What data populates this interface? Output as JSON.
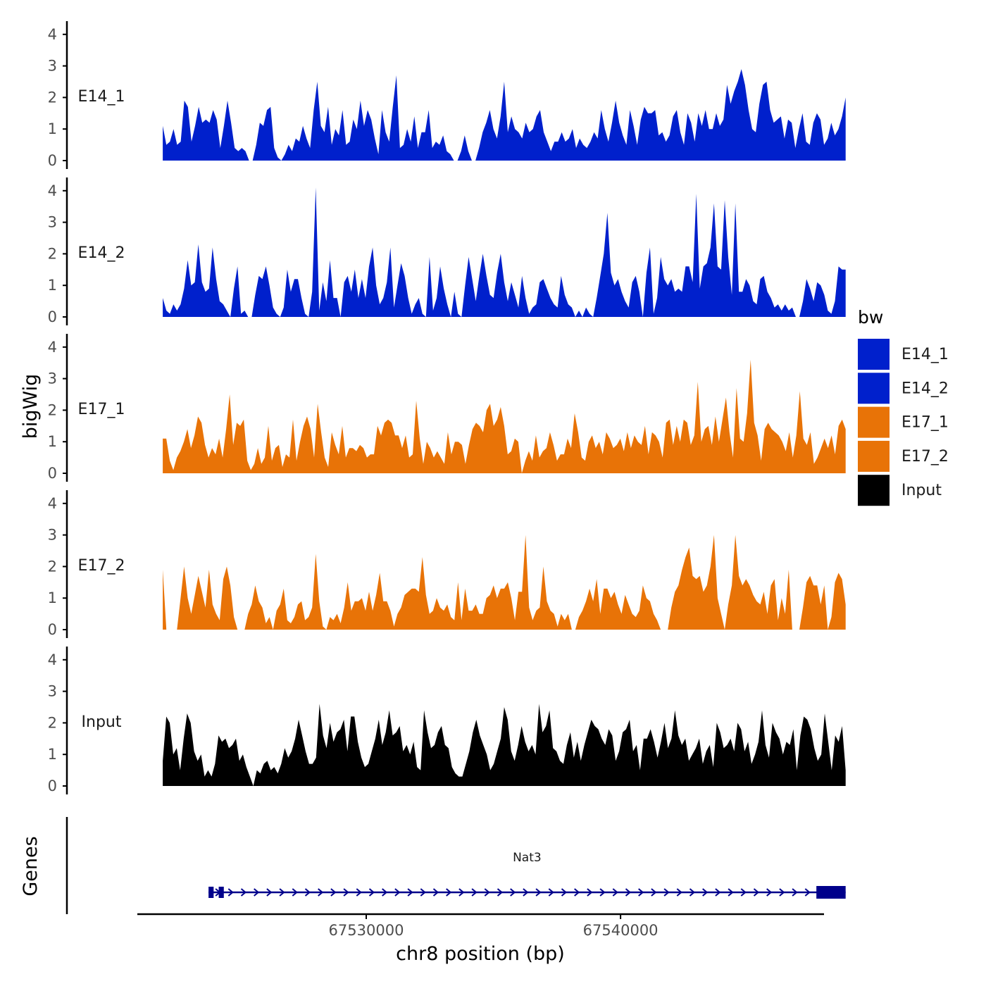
{
  "colors": {
    "E14": "#0020CC",
    "E17": "#E87307",
    "Input": "#000000",
    "gene": "#00008B",
    "axis": "#000000"
  },
  "chart_data": {
    "type": "area",
    "y_axis_title": "bigWig",
    "x_axis_title": "chr8 position (bp)",
    "genes_axis_title": "Genes",
    "x_range": [
      67521000,
      67548000
    ],
    "y_range": [
      0,
      4
    ],
    "y_ticks": [
      "0",
      "1",
      "2",
      "3",
      "4"
    ],
    "x_ticks": [
      {
        "value": 67530000,
        "label": "67530000"
      },
      {
        "value": 67540000,
        "label": "67540000"
      }
    ],
    "data_x_range": [
      67522000,
      67548850
    ],
    "tracks": [
      {
        "name": "E14_1",
        "color_key": "E14",
        "values": [
          1.1,
          0.5,
          0.6,
          1.0,
          0.5,
          0.6,
          1.9,
          1.7,
          0.6,
          1.1,
          1.7,
          1.2,
          1.3,
          1.2,
          1.6,
          1.3,
          0.4,
          1.1,
          1.9,
          1.2,
          0.4,
          0.3,
          0.4,
          0.3,
          0.0,
          0.0,
          0.5,
          1.2,
          1.1,
          1.6,
          1.7,
          0.4,
          0.1,
          0.0,
          0.2,
          0.5,
          0.3,
          0.7,
          0.6,
          1.1,
          0.7,
          0.4,
          1.6,
          2.5,
          1.1,
          0.9,
          1.7,
          0.5,
          1.0,
          0.8,
          1.6,
          0.5,
          0.6,
          1.3,
          1.0,
          1.9,
          1.1,
          1.6,
          1.3,
          0.7,
          0.2,
          1.6,
          0.9,
          0.6,
          1.7,
          2.7,
          0.4,
          0.5,
          1.0,
          0.6,
          1.4,
          0.4,
          0.9,
          0.9,
          1.6,
          0.4,
          0.6,
          0.5,
          0.8,
          0.3,
          0.2,
          0.0,
          0.0,
          0.3,
          0.8,
          0.3,
          0.0,
          0.0,
          0.4,
          0.9,
          1.2,
          1.6,
          1.0,
          0.7,
          1.4,
          2.5,
          0.9,
          1.4,
          1.0,
          0.9,
          0.7,
          1.2,
          0.9,
          1.0,
          1.4,
          1.6,
          0.9,
          0.6,
          0.3,
          0.6,
          0.6,
          0.9,
          0.6,
          0.7,
          1.0,
          0.4,
          0.7,
          0.5,
          0.4,
          0.6,
          0.9,
          0.7,
          1.6,
          1.0,
          0.6,
          1.2,
          1.9,
          1.2,
          0.8,
          0.5,
          1.6,
          1.1,
          0.5,
          1.3,
          1.7,
          1.5,
          1.5,
          1.6,
          0.8,
          0.9,
          0.6,
          0.8,
          1.4,
          1.6,
          0.9,
          0.5,
          1.5,
          1.2,
          0.6,
          1.5,
          1.1,
          1.6,
          1.0,
          1.0,
          1.5,
          1.1,
          1.3,
          2.4,
          1.8,
          2.2,
          2.5,
          2.9,
          2.4,
          1.6,
          1.0,
          0.9,
          1.8,
          2.4,
          2.5,
          1.6,
          1.2,
          1.3,
          1.4,
          0.7,
          1.3,
          1.2,
          0.4,
          1.0,
          1.5,
          0.6,
          0.5,
          1.2,
          1.5,
          1.3,
          0.5,
          0.7,
          1.2,
          0.8,
          1.0,
          1.4,
          2.0
        ],
        "label": "E14_1"
      },
      {
        "name": "E14_2",
        "color_key": "E14",
        "values": [
          0.6,
          0.2,
          0.1,
          0.4,
          0.2,
          0.4,
          0.9,
          1.8,
          1.0,
          1.1,
          2.3,
          1.1,
          0.8,
          0.9,
          2.2,
          1.2,
          0.5,
          0.4,
          0.2,
          0.0,
          0.9,
          1.6,
          0.1,
          0.2,
          0.0,
          0.0,
          0.7,
          1.3,
          1.2,
          1.6,
          1.0,
          0.3,
          0.1,
          0.0,
          0.3,
          1.5,
          0.8,
          1.2,
          1.2,
          0.6,
          0.1,
          0.0,
          0.8,
          4.1,
          0.2,
          1.1,
          0.5,
          1.8,
          0.6,
          0.6,
          0.0,
          1.1,
          1.3,
          0.8,
          1.5,
          0.6,
          1.2,
          0.6,
          1.6,
          2.2,
          1.0,
          0.4,
          0.6,
          1.1,
          2.2,
          0.3,
          1.0,
          1.7,
          1.3,
          0.6,
          0.1,
          0.4,
          0.6,
          0.1,
          0.0,
          1.9,
          0.2,
          0.6,
          1.6,
          0.9,
          0.4,
          0.0,
          0.8,
          0.1,
          0.0,
          1.0,
          1.9,
          1.2,
          0.5,
          1.3,
          2.0,
          1.3,
          0.7,
          0.6,
          1.4,
          2.0,
          1.1,
          0.5,
          1.1,
          0.7,
          0.3,
          1.3,
          0.6,
          0.1,
          0.3,
          0.4,
          1.1,
          1.2,
          0.9,
          0.6,
          0.4,
          0.3,
          1.3,
          0.7,
          0.4,
          0.3,
          0.0,
          0.2,
          0.0,
          0.3,
          0.1,
          0.0,
          0.6,
          1.3,
          2.0,
          3.3,
          1.4,
          1.0,
          1.2,
          0.8,
          0.5,
          0.3,
          1.1,
          1.3,
          0.8,
          0.0,
          1.4,
          2.2,
          0.1,
          0.6,
          1.9,
          1.2,
          1.0,
          1.2,
          0.8,
          0.9,
          0.8,
          1.6,
          1.6,
          1.1,
          3.9,
          0.9,
          1.6,
          1.7,
          2.2,
          3.6,
          1.6,
          1.5,
          3.7,
          1.9,
          0.7,
          3.6,
          0.8,
          0.8,
          1.2,
          1.0,
          0.5,
          0.4,
          1.2,
          1.3,
          0.8,
          0.6,
          0.3,
          0.4,
          0.2,
          0.4,
          0.2,
          0.3,
          0.0,
          0.0,
          0.5,
          1.2,
          0.9,
          0.5,
          1.1,
          1.0,
          0.7,
          0.2,
          0.1,
          0.5,
          1.6,
          1.5,
          1.5
        ],
        "label": "E14_2"
      },
      {
        "name": "E17_1",
        "color_key": "E17",
        "values": [
          1.1,
          1.1,
          0.4,
          0.1,
          0.5,
          0.7,
          1.0,
          1.4,
          0.8,
          1.2,
          1.8,
          1.6,
          0.9,
          0.5,
          0.8,
          0.6,
          1.1,
          0.5,
          1.4,
          2.5,
          0.9,
          1.6,
          1.5,
          1.7,
          0.4,
          0.1,
          0.3,
          0.8,
          0.3,
          0.5,
          1.5,
          0.4,
          0.8,
          0.9,
          0.2,
          0.6,
          0.5,
          1.7,
          0.4,
          1.0,
          1.5,
          1.8,
          1.4,
          0.5,
          2.2,
          1.3,
          0.5,
          0.2,
          1.3,
          0.9,
          0.6,
          1.5,
          0.5,
          0.8,
          0.8,
          0.7,
          0.9,
          0.8,
          0.5,
          0.6,
          0.6,
          1.5,
          1.2,
          1.6,
          1.7,
          1.6,
          1.2,
          1.2,
          0.8,
          1.2,
          0.5,
          0.6,
          2.3,
          1.1,
          0.3,
          1.0,
          0.8,
          0.5,
          0.7,
          0.5,
          0.3,
          1.3,
          0.6,
          1.0,
          1.0,
          0.9,
          0.3,
          0.9,
          1.4,
          1.6,
          1.5,
          1.3,
          2.0,
          2.2,
          1.5,
          1.7,
          2.1,
          1.5,
          0.6,
          0.7,
          1.1,
          1.0,
          0.0,
          0.4,
          0.7,
          0.4,
          1.2,
          0.5,
          0.7,
          0.8,
          1.3,
          0.9,
          0.4,
          0.6,
          0.6,
          1.1,
          0.8,
          1.9,
          1.3,
          0.5,
          0.4,
          1.0,
          1.2,
          0.8,
          1.0,
          0.6,
          1.3,
          1.1,
          0.8,
          0.9,
          1.1,
          0.7,
          1.3,
          0.8,
          1.2,
          1.0,
          0.9,
          1.5,
          0.6,
          1.3,
          1.2,
          1.0,
          0.5,
          1.6,
          1.7,
          0.9,
          1.5,
          1.0,
          1.7,
          1.6,
          0.9,
          1.2,
          2.9,
          1.0,
          1.4,
          1.5,
          0.9,
          1.8,
          1.0,
          1.7,
          2.4,
          1.3,
          0.5,
          2.7,
          1.1,
          1.0,
          1.9,
          3.6,
          1.6,
          1.2,
          0.4,
          1.4,
          1.6,
          1.4,
          1.3,
          1.2,
          1.0,
          0.7,
          1.3,
          0.5,
          1.2,
          2.6,
          1.1,
          0.9,
          1.3,
          0.3,
          0.5,
          0.8,
          1.1,
          0.8,
          1.2,
          0.6,
          1.5,
          1.7,
          1.4
        ],
        "label": "E17_1"
      },
      {
        "name": "E17_2",
        "color_key": "E17",
        "values": [
          1.9,
          0.0,
          0.0,
          0.0,
          0.0,
          1.0,
          2.0,
          1.0,
          0.5,
          1.1,
          1.7,
          1.2,
          0.7,
          1.9,
          0.8,
          0.5,
          0.3,
          1.6,
          2.0,
          1.4,
          0.4,
          0.0,
          0.0,
          0.0,
          0.5,
          0.8,
          1.4,
          0.9,
          0.7,
          0.2,
          0.4,
          0.0,
          0.6,
          0.8,
          1.3,
          0.3,
          0.2,
          0.4,
          0.8,
          0.9,
          0.3,
          0.4,
          0.7,
          2.4,
          0.9,
          0.1,
          0.0,
          0.4,
          0.3,
          0.5,
          0.2,
          0.7,
          1.5,
          0.6,
          0.9,
          0.9,
          1.0,
          0.6,
          1.2,
          0.6,
          1.1,
          1.8,
          0.9,
          0.9,
          0.6,
          0.1,
          0.5,
          0.7,
          1.1,
          1.2,
          1.3,
          1.3,
          1.2,
          2.3,
          1.1,
          0.5,
          0.6,
          1.0,
          0.7,
          0.6,
          0.8,
          0.4,
          0.3,
          1.5,
          0.3,
          1.3,
          0.6,
          0.6,
          0.8,
          0.5,
          0.5,
          1.0,
          1.1,
          1.4,
          1.0,
          1.3,
          1.3,
          1.5,
          1.0,
          0.3,
          1.2,
          1.2,
          3.0,
          0.7,
          0.3,
          0.6,
          0.7,
          2.0,
          0.9,
          0.6,
          0.5,
          0.1,
          0.5,
          0.3,
          0.5,
          0.0,
          0.0,
          0.4,
          0.6,
          0.9,
          1.3,
          0.9,
          1.6,
          0.5,
          1.3,
          1.3,
          1.0,
          1.2,
          0.8,
          0.5,
          1.1,
          0.8,
          0.5,
          0.4,
          0.6,
          1.4,
          1.0,
          0.9,
          0.5,
          0.3,
          0.0,
          0.0,
          0.0,
          0.7,
          1.2,
          1.4,
          1.9,
          2.3,
          2.6,
          1.7,
          1.6,
          1.7,
          1.2,
          1.4,
          2.0,
          3.0,
          1.0,
          0.5,
          0.0,
          0.8,
          1.4,
          3.0,
          1.7,
          1.4,
          1.6,
          1.4,
          1.1,
          0.9,
          0.8,
          1.2,
          0.5,
          1.4,
          1.6,
          0.3,
          1.0,
          0.5,
          1.9,
          0.0,
          0.0,
          0.0,
          0.7,
          1.5,
          1.7,
          1.4,
          1.4,
          0.8,
          1.4,
          0.0,
          0.4,
          1.5,
          1.8,
          1.6,
          0.8
        ],
        "label": "E17_2"
      },
      {
        "name": "Input",
        "color_key": "Input",
        "values": [
          0.8,
          2.2,
          2.0,
          1.0,
          1.2,
          0.5,
          1.5,
          2.3,
          2.0,
          1.1,
          0.8,
          1.0,
          0.3,
          0.5,
          0.3,
          0.7,
          1.6,
          1.4,
          1.5,
          1.2,
          1.3,
          1.5,
          0.8,
          1.0,
          0.6,
          0.3,
          0.0,
          0.5,
          0.4,
          0.7,
          0.8,
          0.5,
          0.6,
          0.4,
          0.7,
          1.2,
          0.9,
          1.1,
          1.5,
          2.1,
          1.6,
          1.1,
          0.7,
          0.7,
          0.9,
          2.6,
          1.6,
          1.2,
          2.0,
          1.4,
          1.7,
          1.8,
          2.1,
          1.1,
          2.2,
          2.2,
          1.4,
          0.9,
          0.6,
          0.7,
          1.1,
          1.5,
          2.1,
          1.3,
          1.7,
          2.4,
          1.6,
          1.7,
          1.9,
          1.1,
          1.3,
          1.0,
          1.4,
          0.6,
          0.5,
          2.4,
          1.7,
          1.2,
          1.3,
          1.7,
          1.9,
          1.3,
          1.2,
          0.6,
          0.4,
          0.3,
          0.3,
          0.7,
          1.1,
          1.7,
          2.1,
          1.6,
          1.3,
          1.0,
          0.5,
          0.7,
          1.1,
          1.5,
          2.5,
          2.1,
          1.1,
          0.8,
          1.3,
          1.9,
          1.4,
          1.1,
          1.3,
          1.0,
          2.6,
          1.7,
          1.9,
          2.4,
          1.2,
          1.1,
          0.8,
          0.7,
          1.3,
          1.7,
          0.9,
          1.4,
          0.8,
          1.3,
          1.7,
          2.1,
          1.9,
          1.8,
          1.5,
          1.3,
          1.8,
          1.6,
          0.8,
          1.1,
          1.7,
          1.8,
          2.1,
          1.1,
          1.3,
          0.5,
          1.5,
          1.5,
          1.8,
          1.4,
          0.9,
          1.4,
          2.0,
          1.2,
          1.5,
          2.4,
          1.6,
          1.3,
          1.5,
          0.8,
          1.0,
          1.2,
          1.5,
          0.7,
          1.1,
          1.3,
          0.6,
          2.0,
          1.7,
          1.2,
          1.3,
          1.5,
          1.1,
          2.0,
          1.8,
          1.1,
          1.4,
          0.7,
          1.0,
          1.4,
          2.4,
          1.3,
          0.9,
          2.0,
          1.7,
          1.5,
          1.0,
          1.4,
          1.3,
          1.8,
          0.5,
          1.6,
          2.2,
          2.1,
          1.8,
          1.2,
          0.8,
          1.0,
          2.3,
          1.4,
          0.5,
          1.6,
          1.4,
          1.9,
          0.5
        ],
        "label": "Input"
      }
    ],
    "legend": {
      "title": "bw",
      "entries": [
        {
          "label": "E14_1",
          "color_key": "E14"
        },
        {
          "label": "E14_2",
          "color_key": "E14"
        },
        {
          "label": "E17_1",
          "color_key": "E17"
        },
        {
          "label": "E17_2",
          "color_key": "E17"
        },
        {
          "label": "Input",
          "color_key": "Input"
        }
      ]
    },
    "gene": {
      "name": "Nat3",
      "start": 67523800,
      "end": 67548850,
      "strand": "+",
      "exons": [
        {
          "start": 67523800,
          "end": 67524000
        },
        {
          "start": 67524200,
          "end": 67524400
        },
        {
          "start": 67547700,
          "end": 67548850
        }
      ]
    }
  }
}
